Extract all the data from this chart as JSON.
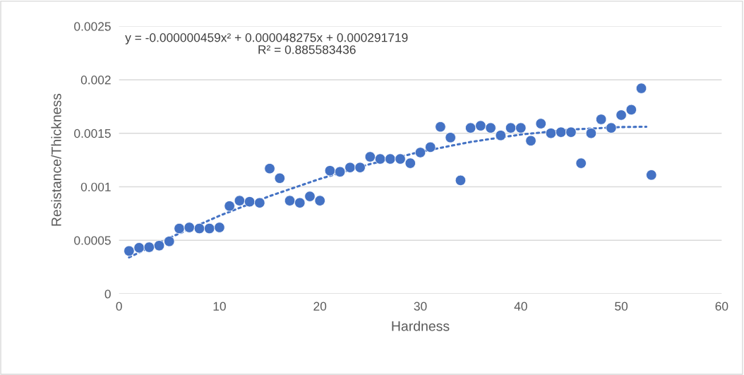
{
  "chart_data": {
    "type": "scatter",
    "xlabel": "Hardness",
    "ylabel": "Resistance/Thickness",
    "annotations": [
      "y = -0.000000459x² + 0.000048275x + 0.000291719",
      "R² = 0.885583436"
    ],
    "xlim": [
      0,
      60
    ],
    "xticks": [
      0,
      10,
      20,
      30,
      40,
      50,
      60
    ],
    "ylim": [
      0,
      0.0025
    ],
    "yticks": [
      0,
      0.0005,
      0.001,
      0.0015,
      0.002,
      0.0025
    ],
    "grid": "y",
    "legend": false,
    "marker": "circle",
    "series": [
      {
        "color": "#4472c4",
        "x": [
          1,
          2,
          3,
          4,
          5,
          6,
          7,
          8,
          9,
          10,
          11,
          12,
          13,
          14,
          15,
          16,
          17,
          18,
          19,
          20,
          21,
          22,
          23,
          24,
          25,
          26,
          27,
          28,
          29,
          30,
          31,
          32,
          33,
          34,
          35,
          36,
          37,
          38,
          39,
          40,
          41,
          42,
          43,
          44,
          45,
          46,
          47,
          48,
          49,
          50,
          51,
          52,
          53
        ],
        "values": [
          0.0004,
          0.00043,
          0.000435,
          0.00045,
          0.00049,
          0.00061,
          0.00062,
          0.00061,
          0.00061,
          0.00062,
          0.00082,
          0.00087,
          0.00086,
          0.00085,
          0.00117,
          0.00108,
          0.00087,
          0.00085,
          0.00091,
          0.00087,
          0.00115,
          0.00114,
          0.00118,
          0.00118,
          0.00128,
          0.00126,
          0.00126,
          0.00126,
          0.00122,
          0.00132,
          0.00137,
          0.00156,
          0.00146,
          0.00106,
          0.00155,
          0.00157,
          0.00155,
          0.00148,
          0.00155,
          0.00155,
          0.00143,
          0.00159,
          0.0015,
          0.00151,
          0.00151,
          0.00122,
          0.0015,
          0.00163,
          0.00155,
          0.00167,
          0.00172,
          0.00192,
          0.00111
        ]
      },
      {
        "type": "line",
        "color": "#4472c4",
        "line_style": "dotted",
        "marker": "none",
        "x": [
          1,
          5,
          10,
          15,
          20,
          25,
          30,
          35,
          40,
          45,
          50,
          52.5
        ],
        "values": [
          0.00034,
          0.000522,
          0.000729,
          0.000913,
          0.001074,
          0.001212,
          0.001327,
          0.001419,
          0.001488,
          0.001535,
          0.001558,
          0.001561
        ]
      }
    ]
  }
}
